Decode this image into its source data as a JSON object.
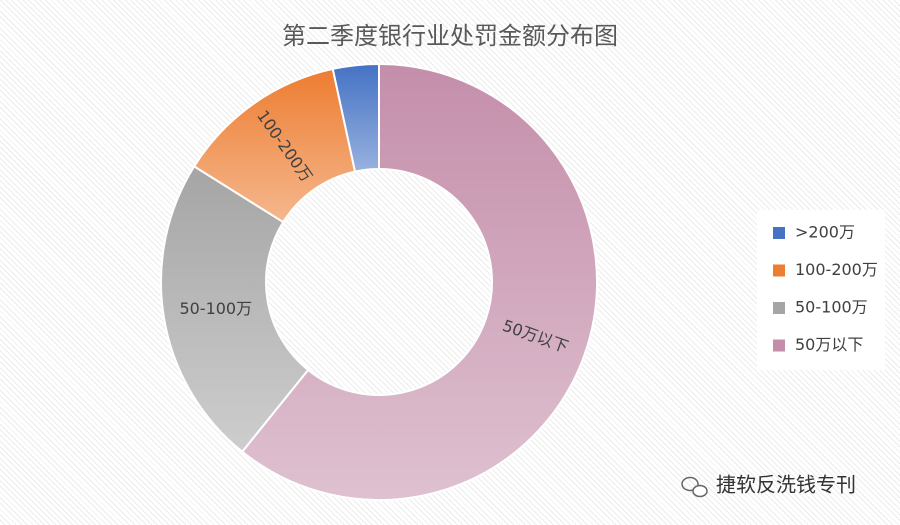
{
  "chart_data": {
    "type": "donut",
    "title": "第二季度银行业处罚金额分布图",
    "categories": [
      ">200万",
      "100-200万",
      "50-100万",
      "50万以下"
    ],
    "values": [
      3.4,
      12.7,
      23.1,
      60.8
    ],
    "colors": [
      "#4472c4",
      "#ed7d31",
      "#a5a5a5",
      "#c48eaa"
    ],
    "data_labels": [
      false,
      true,
      true,
      true
    ],
    "legend": "right"
  },
  "watermark": "捷软反洗钱专刊"
}
